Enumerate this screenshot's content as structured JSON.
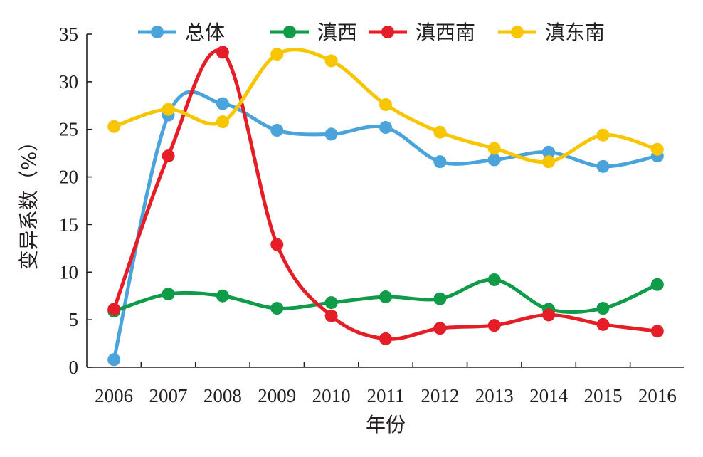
{
  "chart_data": {
    "type": "line",
    "title": "",
    "xlabel": "年份",
    "ylabel": "变异系数（%）",
    "categories": [
      "2006",
      "2007",
      "2008",
      "2009",
      "2010",
      "2011",
      "2012",
      "2013",
      "2014",
      "2015",
      "2016"
    ],
    "ylim": [
      0,
      35
    ],
    "yticks": [
      0,
      5,
      10,
      15,
      20,
      25,
      30,
      35
    ],
    "grid": false,
    "legend": "top",
    "smooth": true,
    "series": [
      {
        "name": "总体",
        "color": "#4aa3db",
        "values": [
          0.8,
          26.5,
          27.7,
          24.9,
          24.5,
          25.2,
          21.6,
          21.8,
          22.6,
          21.1,
          22.2
        ]
      },
      {
        "name": "滇西",
        "color": "#0f9b48",
        "values": [
          5.9,
          7.7,
          7.5,
          6.2,
          6.8,
          7.4,
          7.2,
          9.2,
          6.1,
          6.2,
          8.7
        ]
      },
      {
        "name": "滇西南",
        "color": "#e41d26",
        "values": [
          6.1,
          22.2,
          33.1,
          12.9,
          5.4,
          3.0,
          4.1,
          4.4,
          5.5,
          4.5,
          3.8
        ]
      },
      {
        "name": "滇东南",
        "color": "#f7c600",
        "values": [
          25.3,
          27.1,
          25.8,
          32.9,
          32.2,
          27.6,
          24.7,
          23.0,
          21.6,
          24.4,
          22.9
        ]
      }
    ]
  }
}
